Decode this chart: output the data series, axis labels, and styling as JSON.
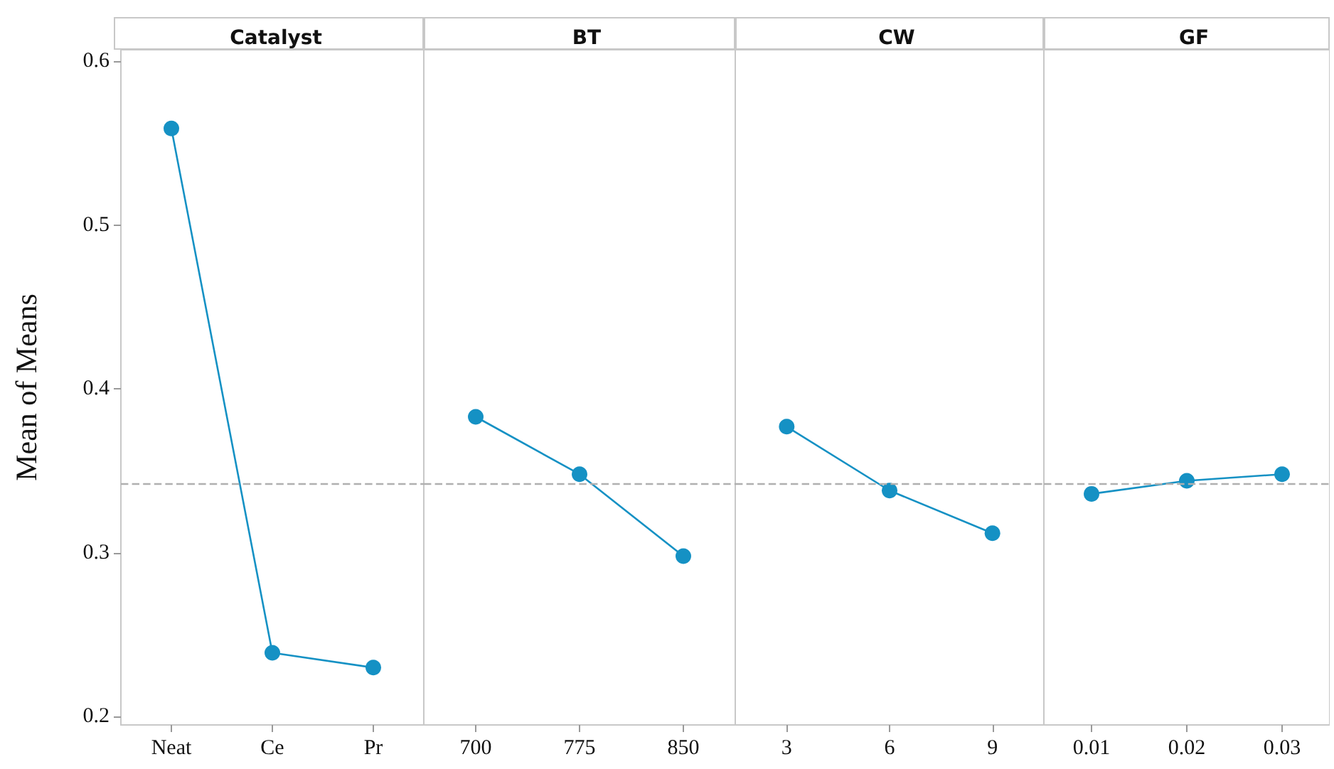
{
  "chart_data": [
    {
      "type": "line",
      "title": "Catalyst",
      "ylabel": "Mean of Means",
      "categories": [
        "Neat",
        "Ce",
        "Pr"
      ],
      "values": [
        0.559,
        0.239,
        0.23
      ],
      "color": "#1591c4",
      "ylim": [
        0.195,
        0.607
      ],
      "yticks": [
        0.2,
        0.3,
        0.4,
        0.5,
        0.6
      ],
      "marker": "circle",
      "grid": false,
      "ref_lines": [
        {
          "axis": "y",
          "value": 0.342,
          "color": "#b0b0b0",
          "line_style": "dashed"
        }
      ]
    },
    {
      "type": "line",
      "title": "BT",
      "categories": [
        "700",
        "775",
        "850"
      ],
      "values": [
        0.383,
        0.348,
        0.298
      ],
      "color": "#1591c4",
      "ylim": [
        0.195,
        0.607
      ],
      "yticks": [
        0.2,
        0.3,
        0.4,
        0.5,
        0.6
      ],
      "tick_labels": "x",
      "marker": "circle",
      "grid": false,
      "ref_lines": [
        {
          "axis": "y",
          "value": 0.342,
          "color": "#b0b0b0",
          "line_style": "dashed"
        }
      ]
    },
    {
      "type": "line",
      "title": "CW",
      "categories": [
        "3",
        "6",
        "9"
      ],
      "values": [
        0.377,
        0.338,
        0.312
      ],
      "color": "#1591c4",
      "ylim": [
        0.195,
        0.607
      ],
      "yticks": [
        0.2,
        0.3,
        0.4,
        0.5,
        0.6
      ],
      "tick_labels": "x",
      "marker": "circle",
      "grid": false,
      "ref_lines": [
        {
          "axis": "y",
          "value": 0.342,
          "color": "#b0b0b0",
          "line_style": "dashed"
        }
      ]
    },
    {
      "type": "line",
      "title": "GF",
      "categories": [
        "0.01",
        "0.02",
        "0.03"
      ],
      "values": [
        0.336,
        0.344,
        0.348
      ],
      "color": "#1591c4",
      "ylim": [
        0.195,
        0.607
      ],
      "yticks": [
        0.2,
        0.3,
        0.4,
        0.5,
        0.6
      ],
      "tick_labels": "x",
      "marker": "circle",
      "grid": false,
      "ref_lines": [
        {
          "axis": "y",
          "value": 0.342,
          "color": "#b0b0b0",
          "line_style": "dashed"
        }
      ]
    }
  ]
}
